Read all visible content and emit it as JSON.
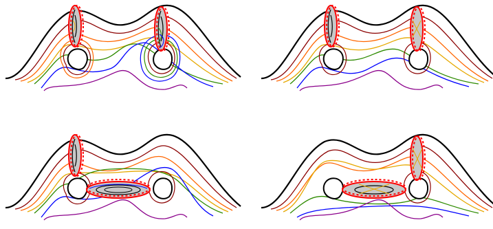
{
  "figure": {
    "panels": [
      {
        "id": "top-left",
        "cusp_regions": [
          "left-pinch",
          "right-pinch"
        ]
      },
      {
        "id": "top-right",
        "cusp_regions": [
          "left-pinch",
          "right-pinch"
        ]
      },
      {
        "id": "bottom-left",
        "cusp_regions": [
          "left-pinch",
          "middle-pinch"
        ]
      },
      {
        "id": "bottom-right",
        "cusp_regions": [
          "middle-pinch",
          "right-pinch"
        ]
      }
    ],
    "colors": {
      "boundary": "#000000",
      "levels": [
        "#8b0000",
        "#ff6600",
        "#e6a800",
        "#2e8b00",
        "#0000ff",
        "#8b008b"
      ],
      "outline": "#ff0000",
      "shade": "#c8c8c8"
    }
  }
}
